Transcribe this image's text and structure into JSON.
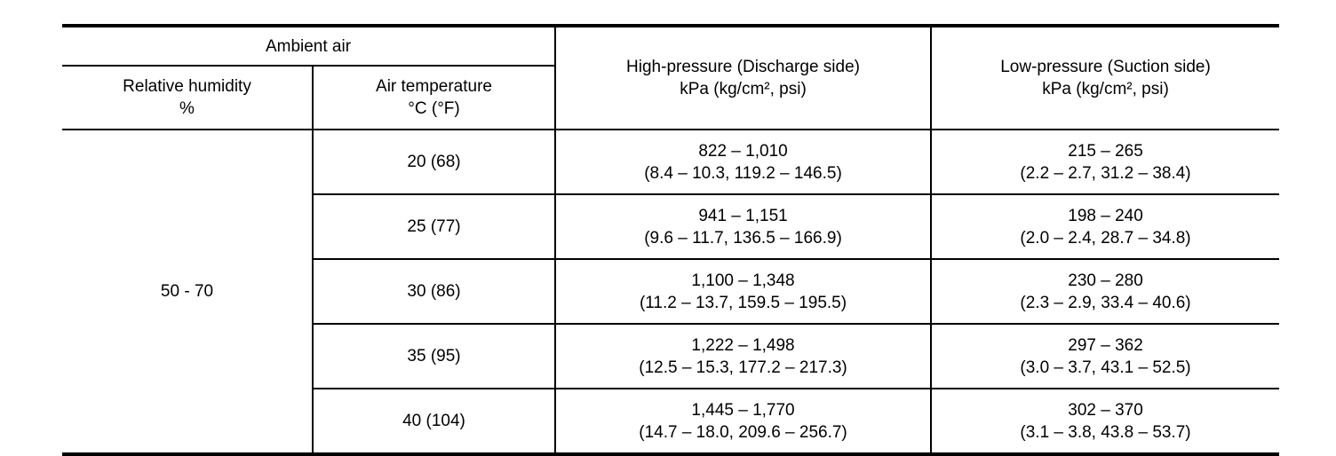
{
  "table": {
    "colors": {
      "border": "#000000",
      "text": "#000000",
      "background": "#ffffff"
    },
    "header": {
      "ambient_air": "Ambient air",
      "relative_humidity": {
        "line1": "Relative humidity",
        "line2": "%"
      },
      "air_temperature": {
        "line1": "Air temperature",
        "line2": "°C (°F)"
      },
      "high_pressure": {
        "line1": "High-pressure (Discharge side)",
        "line2": "kPa (kg/cm², psi)"
      },
      "low_pressure": {
        "line1": "Low-pressure (Suction side)",
        "line2": "kPa (kg/cm², psi)"
      }
    },
    "humidity_value": "50 - 70",
    "rows": [
      {
        "temp": "20 (68)",
        "high": {
          "line1": "822 – 1,010",
          "line2": "(8.4 – 10.3, 119.2 – 146.5)"
        },
        "low": {
          "line1": "215 – 265",
          "line2": "(2.2 – 2.7, 31.2 – 38.4)"
        }
      },
      {
        "temp": "25 (77)",
        "high": {
          "line1": "941 – 1,151",
          "line2": "(9.6 – 11.7, 136.5 – 166.9)"
        },
        "low": {
          "line1": "198 – 240",
          "line2": "(2.0 – 2.4, 28.7 – 34.8)"
        }
      },
      {
        "temp": "30 (86)",
        "high": {
          "line1": "1,100 – 1,348",
          "line2": "(11.2 – 13.7, 159.5 – 195.5)"
        },
        "low": {
          "line1": "230 – 280",
          "line2": "(2.3 – 2.9, 33.4 – 40.6)"
        }
      },
      {
        "temp": "35 (95)",
        "high": {
          "line1": "1,222 – 1,498",
          "line2": "(12.5 – 15.3, 177.2 – 217.3)"
        },
        "low": {
          "line1": "297 – 362",
          "line2": "(3.0 – 3.7, 43.1 – 52.5)"
        }
      },
      {
        "temp": "40 (104)",
        "high": {
          "line1": "1,445 – 1,770",
          "line2": "(14.7 – 18.0, 209.6 – 256.7)"
        },
        "low": {
          "line1": "302 – 370",
          "line2": "(3.1 – 3.8, 43.8 – 53.7)"
        }
      }
    ]
  }
}
